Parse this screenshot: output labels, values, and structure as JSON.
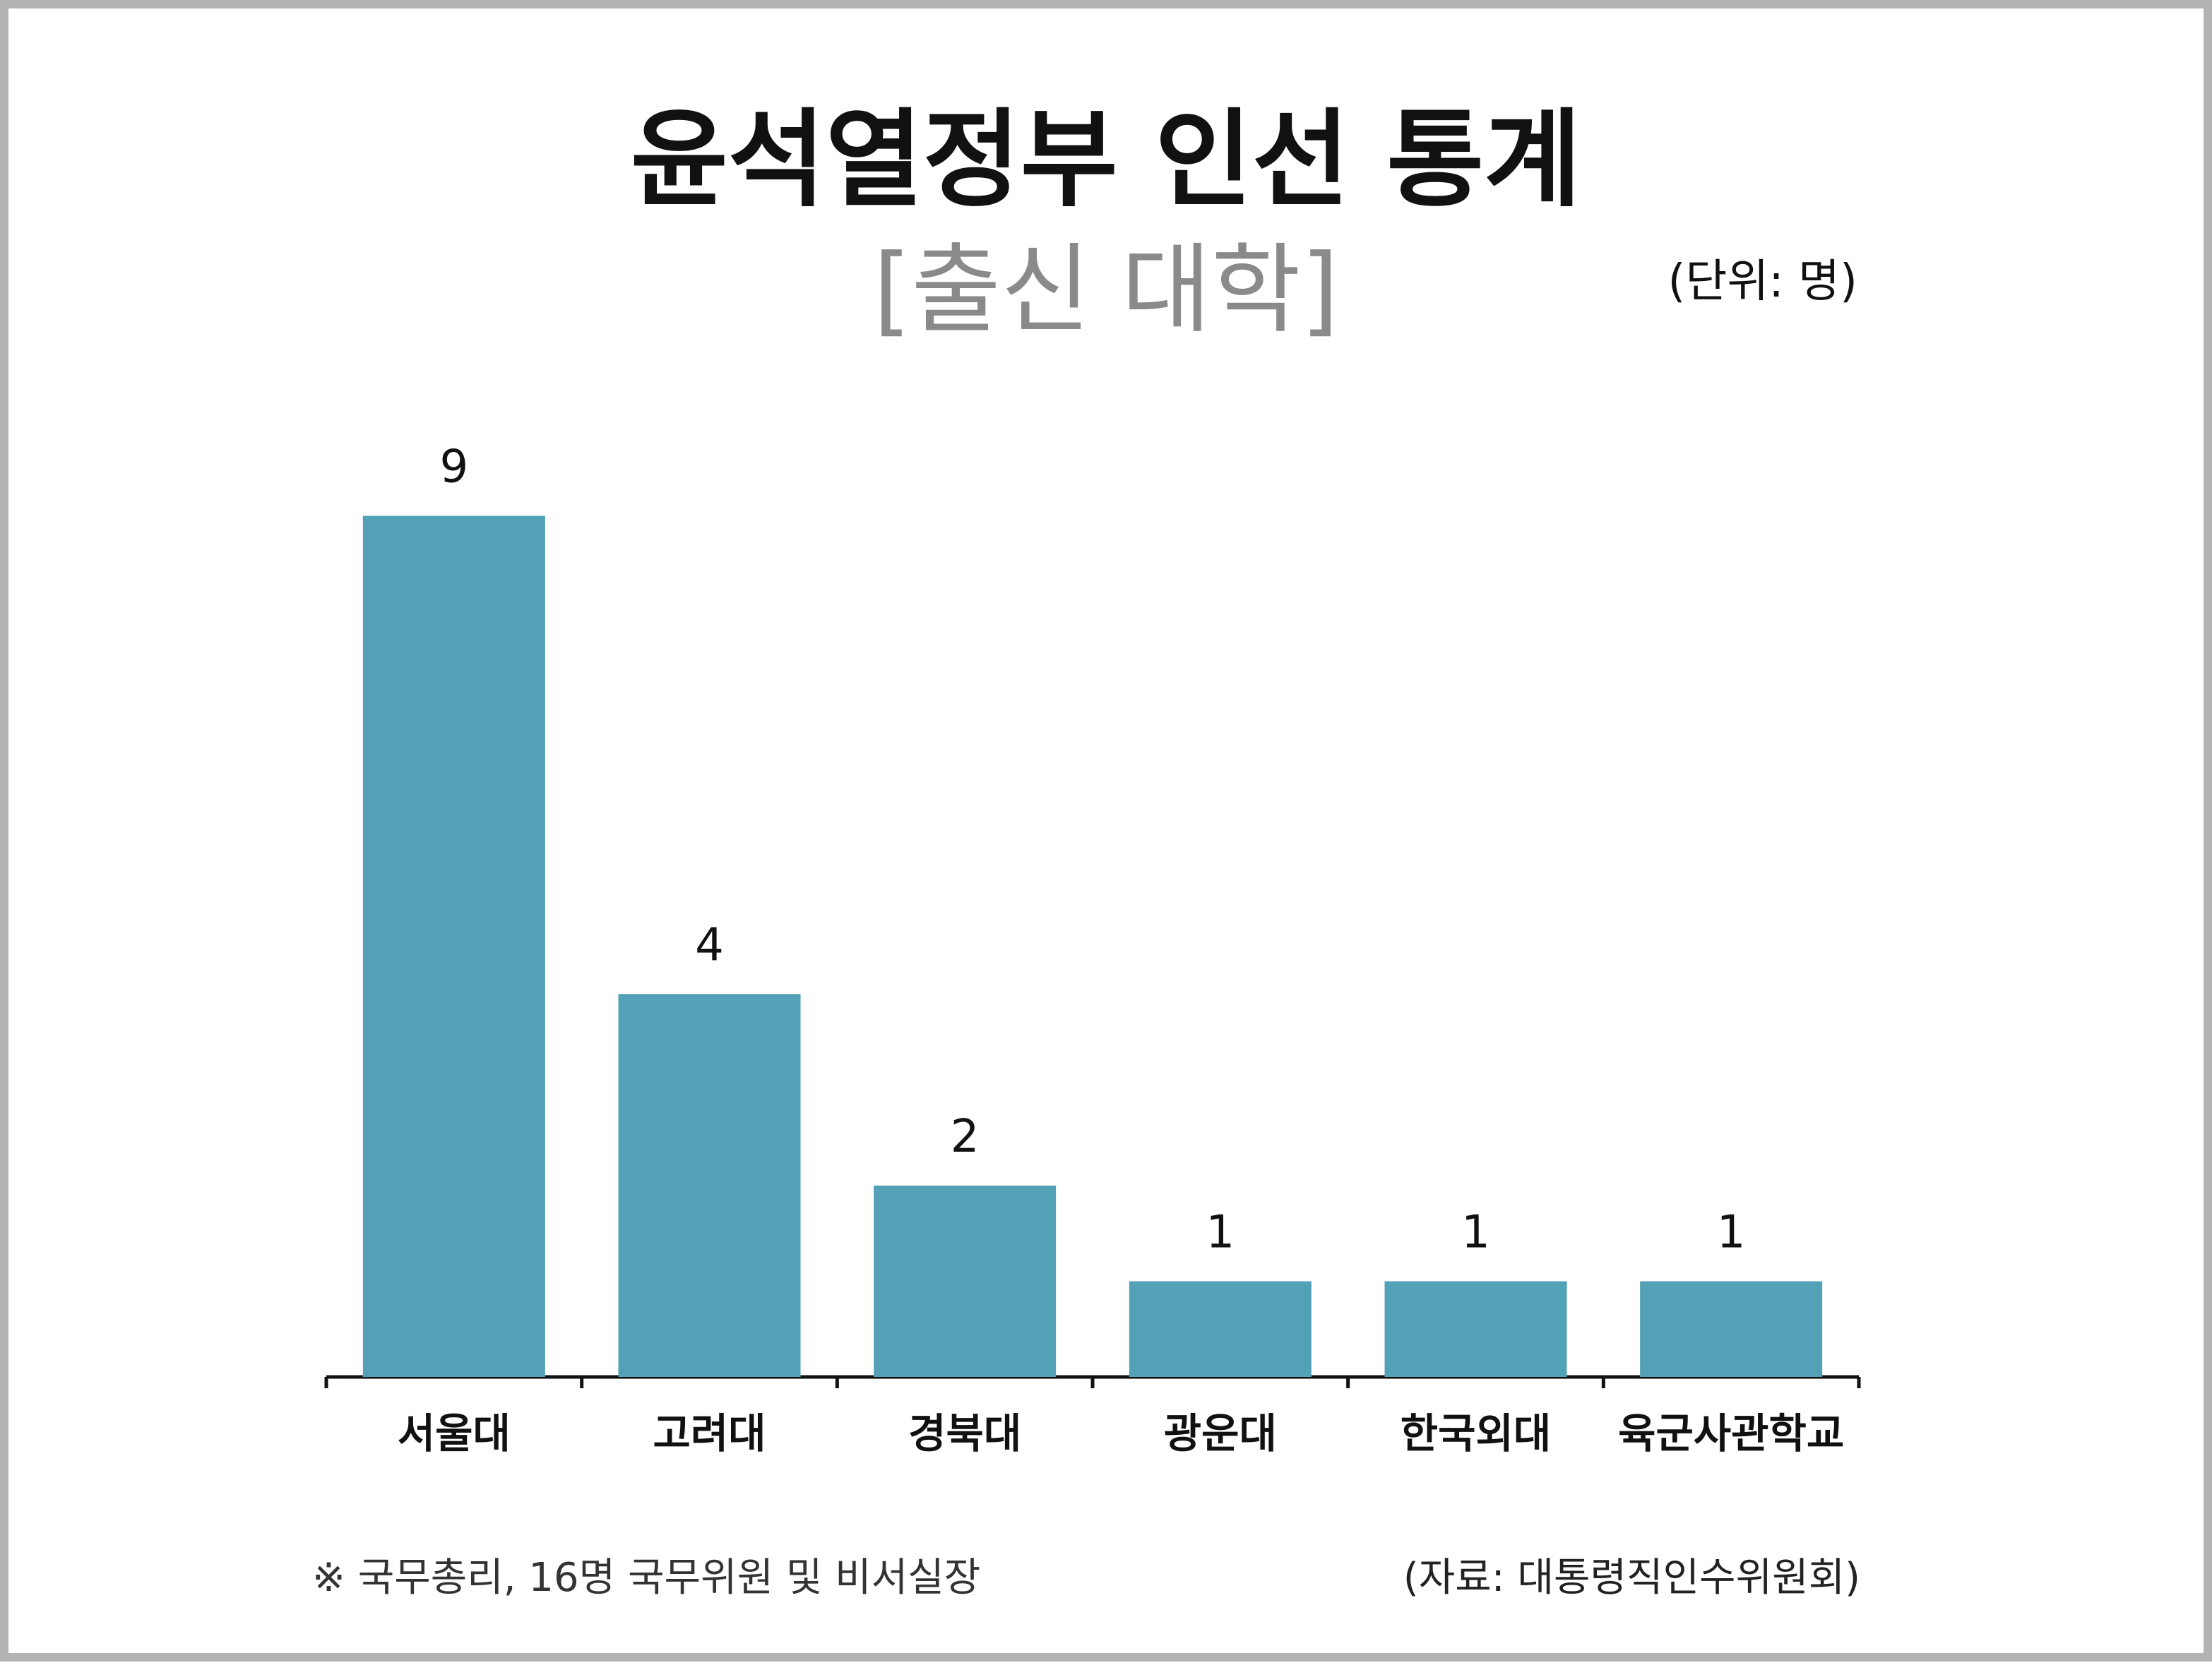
{
  "title": "윤석열정부 인선 통계",
  "subtitle": "[출신 대학]",
  "unit": "(단위: 명)",
  "note": "※ 국무총리, 16명 국무위원 및 비서실장",
  "source": "(자료: 대통령직인수위원회)",
  "colors": {
    "bar": "#52a1b6",
    "axis": "#111111",
    "text": "#111111",
    "subtitle": "#8a8a8a"
  },
  "chart_data": {
    "type": "bar",
    "categories": [
      "서울대",
      "고려대",
      "경북대",
      "광운대",
      "한국외대",
      "육군사관학교"
    ],
    "values": [
      9,
      4,
      2,
      1,
      1,
      1
    ],
    "ylim": [
      0,
      9
    ],
    "grid": false,
    "legend": "none"
  }
}
